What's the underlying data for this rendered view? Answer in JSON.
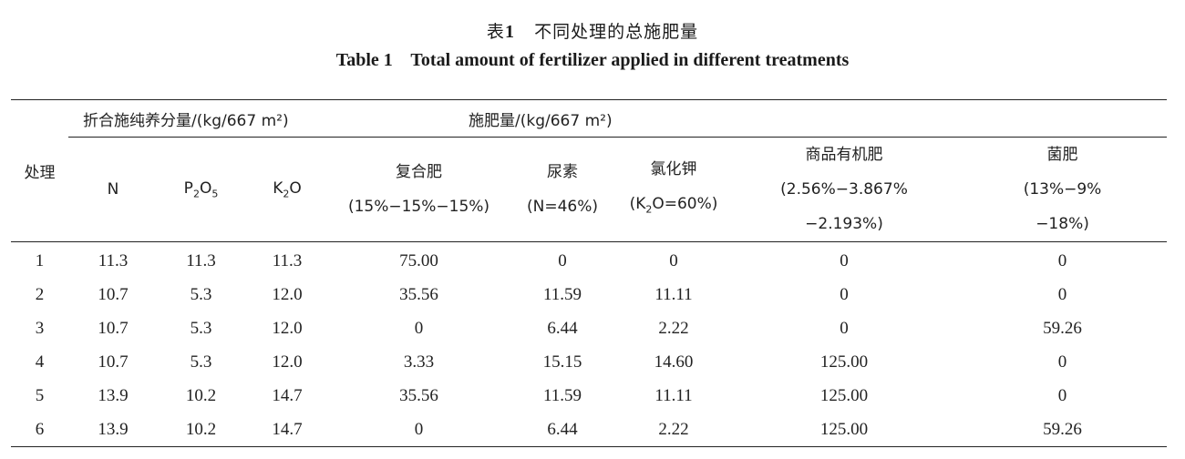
{
  "title_cn_prefix": "表",
  "title_cn_num": "1",
  "title_cn_text": "不同处理的总施肥量",
  "title_en": "Table 1    Total amount of fertilizer applied in different treatments",
  "headers": {
    "treatment": "处理",
    "group_nutrient": "折合施纯养分量/(kg/667 m²)",
    "group_fertilizer": "施肥量/(kg/667 m²)",
    "n": "N",
    "p2o5": {
      "a": "P",
      "b": "2",
      "c": "O",
      "d": "5"
    },
    "k2o": {
      "a": "K",
      "b": "2",
      "c": "O"
    },
    "compound": {
      "l1": "复合肥",
      "l2": "(15%−15%−15%)"
    },
    "urea": {
      "l1": "尿素",
      "l2": "(N=46%)"
    },
    "kcl": {
      "l1": "氯化钾",
      "l2a": "(K",
      "l2b": "2",
      "l2c": "O=60%)"
    },
    "organic": {
      "l1": "商品有机肥",
      "l2": "(2.56%−3.867%",
      "l3": "−2.193%)"
    },
    "bio": {
      "l1": "菌肥",
      "l2": "(13%−9%",
      "l3": "−18%)"
    }
  },
  "rows": [
    [
      "1",
      "11.3",
      "11.3",
      "11.3",
      "75.00",
      "0",
      "0",
      "0",
      "0"
    ],
    [
      "2",
      "10.7",
      "5.3",
      "12.0",
      "35.56",
      "11.59",
      "11.11",
      "0",
      "0"
    ],
    [
      "3",
      "10.7",
      "5.3",
      "12.0",
      "0",
      "6.44",
      "2.22",
      "0",
      "59.26"
    ],
    [
      "4",
      "10.7",
      "5.3",
      "12.0",
      "3.33",
      "15.15",
      "14.60",
      "125.00",
      "0"
    ],
    [
      "5",
      "13.9",
      "10.2",
      "14.7",
      "35.56",
      "11.59",
      "11.11",
      "125.00",
      "0"
    ],
    [
      "6",
      "13.9",
      "10.2",
      "14.7",
      "0",
      "6.44",
      "2.22",
      "125.00",
      "59.26"
    ]
  ]
}
